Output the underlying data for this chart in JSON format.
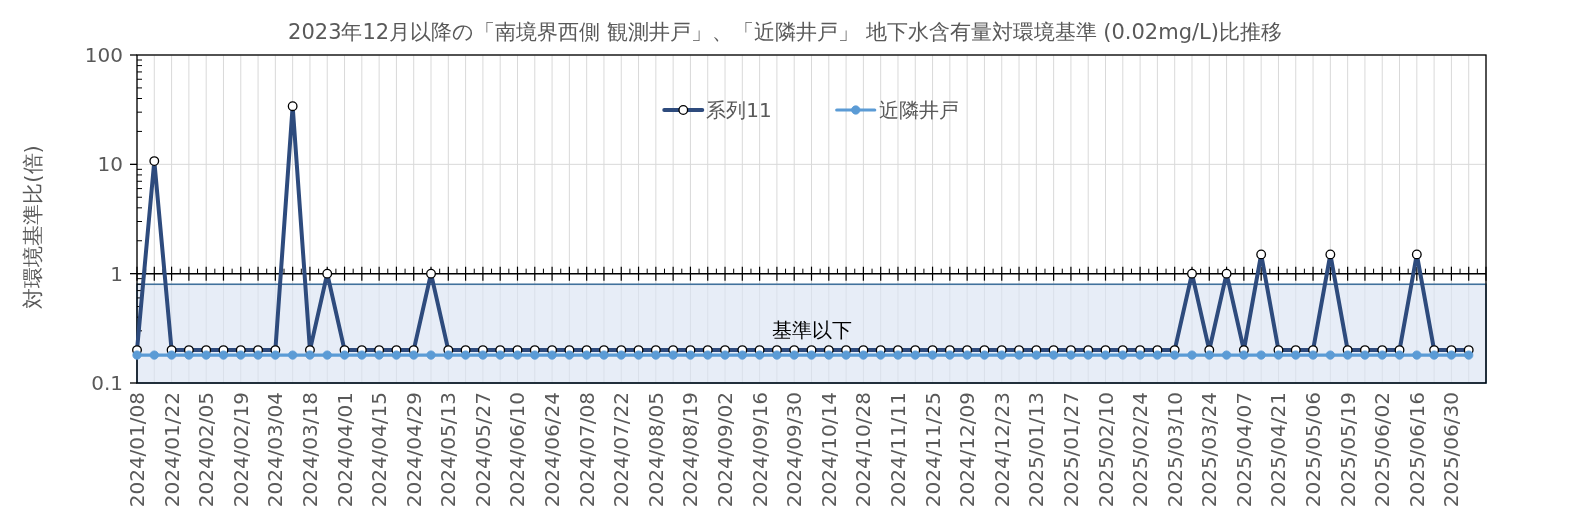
{
  "chart_data": {
    "type": "line",
    "title": "2023年12月以降の「南境界西側 観測井戸」、「近隣井戸」 地下水含有量対環境基準 (0.02mg/L)比推移",
    "ylabel": "対環境基準比(倍)",
    "categories": [
      "2024/01/08",
      null,
      "2024/01/22",
      null,
      "2024/02/05",
      null,
      "2024/02/19",
      null,
      "2024/03/04",
      null,
      "2024/03/18",
      null,
      "2024/04/01",
      null,
      "2024/04/15",
      null,
      "2024/04/29",
      null,
      "2024/05/13",
      null,
      "2024/05/27",
      null,
      "2024/06/10",
      null,
      "2024/06/24",
      null,
      "2024/07/08",
      null,
      "2024/07/22",
      null,
      "2024/08/05",
      null,
      "2024/08/19",
      null,
      "2024/09/02",
      null,
      "2024/09/16",
      null,
      "2024/09/30",
      null,
      "2024/10/14",
      null,
      "2024/10/28",
      null,
      "2024/11/11",
      null,
      "2024/11/25",
      null,
      "2024/12/09",
      null,
      "2024/12/23",
      null,
      "2025/01/13",
      null,
      "2025/01/27",
      null,
      "2025/02/10",
      null,
      "2025/02/24",
      null,
      "2025/03/10",
      null,
      "2025/03/24",
      null,
      "2025/04/07",
      null,
      "2025/04/21",
      null,
      "2025/05/06",
      null,
      "2025/05/19",
      null,
      "2025/06/02",
      null,
      "2025/06/16",
      null,
      "2025/06/30",
      null,
      null
    ],
    "series": [
      {
        "name": "系列11",
        "color": "#2e4b7d",
        "values": [
          0.2,
          10.7,
          0.2,
          0.2,
          0.2,
          0.2,
          0.2,
          0.2,
          0.2,
          34,
          0.2,
          1,
          0.2,
          0.2,
          0.2,
          0.2,
          0.2,
          1,
          0.2,
          0.2,
          0.2,
          0.2,
          0.2,
          0.2,
          0.2,
          0.2,
          0.2,
          0.2,
          0.2,
          0.2,
          0.2,
          0.2,
          0.2,
          0.2,
          0.2,
          0.2,
          0.2,
          0.2,
          0.2,
          0.2,
          0.2,
          0.2,
          0.2,
          0.2,
          0.2,
          0.2,
          0.2,
          0.2,
          0.2,
          0.2,
          0.2,
          0.2,
          0.2,
          0.2,
          0.2,
          0.2,
          0.2,
          0.2,
          0.2,
          0.2,
          0.2,
          1,
          0.2,
          1,
          0.2,
          1.5,
          0.2,
          0.2,
          0.2,
          1.5,
          0.2,
          0.2,
          0.2,
          0.2,
          1.5,
          0.2,
          0.2,
          0.2,
          null
        ]
      },
      {
        "name": "近隣井戸",
        "color": "#5b9bd5",
        "values": [
          0.18,
          0.18,
          0.18,
          0.18,
          0.18,
          0.18,
          0.18,
          0.18,
          0.18,
          0.18,
          0.18,
          0.18,
          0.18,
          0.18,
          0.18,
          0.18,
          0.18,
          0.18,
          0.18,
          0.18,
          0.18,
          0.18,
          0.18,
          0.18,
          0.18,
          0.18,
          0.18,
          0.18,
          0.18,
          0.18,
          0.18,
          0.18,
          0.18,
          0.18,
          0.18,
          0.18,
          0.18,
          0.18,
          0.18,
          0.18,
          0.18,
          0.18,
          0.18,
          0.18,
          0.18,
          0.18,
          0.18,
          0.18,
          0.18,
          0.18,
          0.18,
          0.18,
          0.18,
          0.18,
          0.18,
          0.18,
          0.18,
          0.18,
          0.18,
          0.18,
          0.18,
          0.18,
          0.18,
          0.18,
          0.18,
          0.18,
          0.18,
          0.18,
          0.18,
          0.18,
          0.18,
          0.18,
          0.18,
          0.18,
          0.18,
          0.18,
          0.18,
          0.18,
          null
        ]
      }
    ],
    "log": "y",
    "ylim": [
      0.1,
      100
    ],
    "yticks": [
      0.1,
      1,
      10,
      100
    ],
    "grid": true,
    "legend": "top",
    "marker": "circle",
    "ref_lines": [
      {
        "axis": "y",
        "value": 1,
        "color": "#000000"
      }
    ],
    "bands": [
      {
        "axis": "y",
        "from": 0.1,
        "to": 0.8,
        "label": "基準以下",
        "color": "#dae3f3"
      }
    ]
  }
}
